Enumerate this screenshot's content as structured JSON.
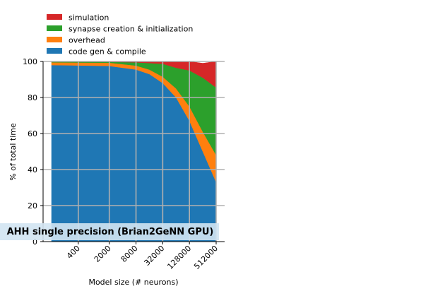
{
  "chart_data": {
    "type": "area",
    "stacked": true,
    "x": [
      100,
      400,
      2000,
      8000,
      16000,
      32000,
      64000,
      128000,
      256000,
      512000
    ],
    "xticks": [
      "400",
      "2000",
      "8000",
      "32000",
      "128000",
      "512000"
    ],
    "xtick_values": [
      400,
      2000,
      8000,
      32000,
      128000,
      512000
    ],
    "ylim": [
      0,
      100
    ],
    "yticks": [
      0,
      20,
      40,
      60,
      80,
      100
    ],
    "xlabel": "Model size (# neurons)",
    "ylabel": "% of total time",
    "panel_title": "AHH single precision (Brian2GeNN GPU)",
    "grid": true,
    "legend_position": "top-left, above plot",
    "series": [
      {
        "name": "code gen & compile",
        "color": "#1f77b4",
        "values": [
          98,
          97.8,
          97.5,
          95.5,
          93,
          88,
          80,
          67,
          50,
          33
        ]
      },
      {
        "name": "overhead",
        "color": "#ff7f0e",
        "values": [
          1.5,
          1.6,
          1.8,
          2.2,
          2.5,
          3.5,
          5,
          8,
          11,
          15
        ]
      },
      {
        "name": "synapse creation & initialization",
        "color": "#2ca02c",
        "values": [
          0.4,
          0.5,
          0.5,
          1.8,
          3.6,
          7.2,
          11.5,
          20,
          30,
          37.5
        ]
      },
      {
        "name": "simulation",
        "color": "#d62728",
        "values": [
          0.1,
          0.1,
          0.2,
          0.5,
          0.9,
          1.3,
          3.5,
          5,
          8,
          14.5
        ]
      }
    ]
  }
}
